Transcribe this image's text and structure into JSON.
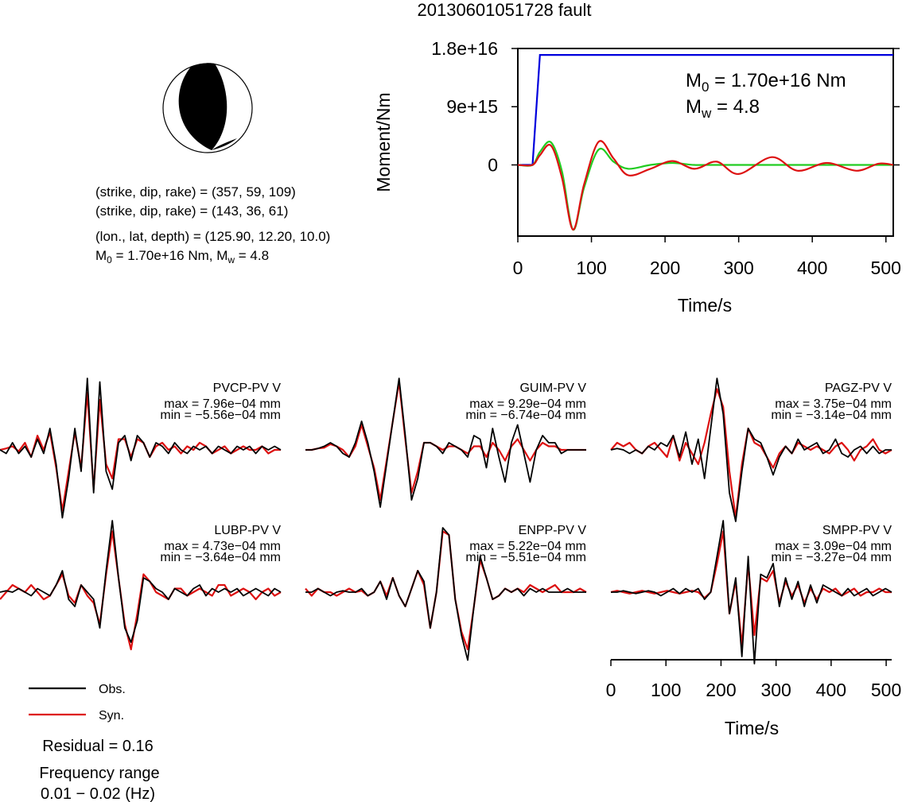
{
  "title": "20130601051728 fault",
  "beachball": {
    "planes": [
      {
        "prefix": "(strike, dip, rake) = ",
        "value": "(357, 59, 109)"
      },
      {
        "prefix": "(strike, dip, rake) = ",
        "value": "(143, 36, 61)"
      }
    ],
    "location": "(lon., lat, depth) = (125.90, 12.20, 10.0)",
    "moment_prefix": "M",
    "moment_sub": "0",
    "moment_text": " = 1.70e+16 Nm, M",
    "moment_sub_w": "w",
    "moment_mw": " = 4.8"
  },
  "chart_data": [
    {
      "type": "line",
      "panel": "moment",
      "ylabel": "Moment/Nm",
      "xlabel": "Time/s",
      "xlim": [
        0,
        510
      ],
      "ylim": [
        -1.1e+16,
        1.8e+16
      ],
      "xticks": [
        "0",
        "100",
        "200",
        "300",
        "400",
        "500"
      ],
      "yticks": [
        "0",
        "9e+15",
        "1.8e+16"
      ],
      "annotation": {
        "m0_label": "M",
        "m0_sub": "0",
        "m0_value": " = 1.70e+16 Nm",
        "mw_label": "M",
        "mw_sub": "w",
        "mw_value": " = 4.8"
      },
      "series": [
        {
          "color": "#0000dd",
          "x": [
            0,
            20,
            30,
            510
          ],
          "y": [
            0,
            0,
            1.7e+16,
            1.7e+16
          ]
        },
        {
          "color": "#22cc22",
          "x": [
            0,
            20,
            30,
            45,
            60,
            75,
            90,
            110,
            130,
            150,
            180,
            210,
            240,
            270,
            510
          ],
          "y": [
            0,
            0,
            2000000000000000.0,
            3500000000000000.0,
            -1000000000000000.0,
            -1e+16,
            -3500000000000000.0,
            2400000000000000.0,
            500000000000000.0,
            -600000000000000.0,
            0,
            300000000000000.0,
            0,
            0,
            0
          ]
        },
        {
          "color": "#dd1111",
          "x": [
            0,
            20,
            30,
            45,
            60,
            75,
            90,
            110,
            130,
            150,
            180,
            210,
            240,
            270,
            300,
            345,
            380,
            420,
            460,
            490,
            510
          ],
          "y": [
            0,
            0,
            1500000000000000.0,
            3000000000000000.0,
            -2000000000000000.0,
            -1e+16,
            -3000000000000000.0,
            3600000000000000.0,
            1000000000000000.0,
            -1600000000000000.0,
            -600000000000000.0,
            600000000000000.0,
            -600000000000000.0,
            500000000000000.0,
            -1400000000000000.0,
            1200000000000000.0,
            -900000000000000.0,
            300000000000000.0,
            -900000000000000.0,
            200000000000000.0,
            0
          ]
        }
      ]
    },
    {
      "type": "line",
      "panel": "waveforms",
      "xlabel": "Time/s",
      "xlim": [
        0,
        510
      ],
      "xticks": [
        "0",
        "100",
        "200",
        "300",
        "400",
        "500"
      ],
      "stations": [
        {
          "name": "PVCP-PV V",
          "max": "max = 7.96e−04 mm",
          "min": "min = −5.56e−04 mm",
          "obs": [
            0,
            -0.05,
            0.1,
            -0.05,
            0.05,
            -0.1,
            0.15,
            -0.05,
            0.3,
            -0.2,
            -0.95,
            -0.4,
            0.3,
            -0.3,
            1.0,
            -0.6,
            0.95,
            -0.3,
            -0.55,
            0.1,
            0.2,
            -0.15,
            0.2,
            0.1,
            -0.1,
            0.1,
            0.05,
            -0.05,
            0.1,
            0,
            -0.05,
            0.05,
            0,
            0.05,
            -0.05,
            0.05,
            0,
            -0.05,
            0.05,
            0,
            0.05,
            -0.05,
            0.05,
            0,
            0.05,
            0
          ],
          "syn": [
            0,
            0.02,
            0.05,
            -0.02,
            0.1,
            -0.1,
            0.2,
            0,
            0.25,
            -0.25,
            -0.85,
            -0.3,
            0.25,
            -0.25,
            0.8,
            -0.55,
            0.7,
            -0.2,
            -0.4,
            0.15,
            0.15,
            -0.1,
            0.15,
            0.1,
            -0.1,
            0.05,
            0.1,
            0,
            0.05,
            -0.05,
            0.05,
            0,
            0.1,
            0.05,
            -0.05,
            0,
            0.05,
            -0.05,
            0,
            0.05,
            0,
            0,
            0.05,
            -0.05,
            0,
            0
          ]
        },
        {
          "name": "GUIM-PV V",
          "max": "max = 9.29e−04 mm",
          "min": "min = −6.74e−04 mm",
          "obs": [
            0,
            0,
            0.02,
            0.05,
            0.1,
            0.05,
            -0.05,
            -0.1,
            0.1,
            0.4,
            0.1,
            -0.3,
            -0.8,
            -0.2,
            0.4,
            1.0,
            0.2,
            -0.7,
            -0.4,
            0.1,
            0.1,
            0.05,
            -0.05,
            0.1,
            0.05,
            0,
            -0.1,
            0.2,
            0.15,
            -0.25,
            0.3,
            -0.1,
            -0.45,
            0.1,
            0.35,
            -0.05,
            -0.45,
            0,
            0.2,
            0.1,
            0.1,
            -0.05,
            0,
            0,
            0,
            0
          ],
          "syn": [
            0,
            0,
            0.02,
            0.03,
            0.08,
            0.05,
            0,
            -0.1,
            0.05,
            0.35,
            0.05,
            -0.25,
            -0.7,
            -0.15,
            0.4,
            0.95,
            0.15,
            -0.6,
            -0.3,
            0.1,
            0.1,
            0.05,
            0,
            0.05,
            0.05,
            0,
            -0.05,
            0.05,
            0.05,
            -0.1,
            0.1,
            0,
            -0.15,
            0.05,
            0.15,
            0,
            -0.15,
            0,
            0.1,
            0.05,
            0.05,
            0,
            0,
            0,
            0,
            0
          ]
        },
        {
          "name": "PAGZ-PV V",
          "max": "max = 3.75e−04 mm",
          "min": "min = −3.14e−04 mm",
          "obs": [
            0,
            0.02,
            0,
            -0.05,
            0,
            -0.05,
            0.05,
            0,
            0.1,
            0.05,
            0.2,
            -0.1,
            0.25,
            -0.2,
            0.15,
            -0.4,
            0.3,
            1.0,
            0.5,
            -0.6,
            -1.0,
            -0.3,
            0.3,
            0.15,
            0.1,
            -0.1,
            -0.35,
            -0.1,
            0.05,
            -0.05,
            0.15,
            0,
            0.05,
            0.1,
            -0.05,
            0,
            0.15,
            -0.05,
            -0.1,
            0,
            0.05,
            -0.05,
            0.05,
            -0.05,
            0,
            0
          ],
          "syn": [
            0,
            0.1,
            0.05,
            0.1,
            0,
            -0.05,
            0.05,
            0.1,
            0,
            -0.1,
            0.2,
            -0.15,
            0.1,
            -0.05,
            -0.2,
            0.1,
            0.5,
            0.85,
            0.6,
            -0.3,
            -0.95,
            -0.2,
            0.3,
            0.1,
            0.05,
            -0.1,
            -0.25,
            -0.05,
            0.05,
            -0.05,
            0.1,
            0.05,
            0,
            0.05,
            0,
            -0.05,
            0.05,
            0.1,
            0,
            -0.15,
            0,
            0.05,
            0.15,
            0,
            -0.05,
            0
          ]
        },
        {
          "name": "LUBP-PV V",
          "max": "max = 4.73e−04 mm",
          "min": "min = −3.64e−04 mm",
          "obs": [
            0,
            0.02,
            0,
            0.05,
            0,
            -0.05,
            0.05,
            0,
            -0.05,
            0.1,
            0.3,
            -0.1,
            -0.2,
            0.1,
            0,
            -0.1,
            -0.5,
            0.3,
            1.0,
            0.2,
            -0.5,
            -0.7,
            -0.4,
            0.2,
            0.15,
            0.05,
            0,
            -0.1,
            0.05,
            0,
            -0.05,
            0.05,
            0.1,
            -0.05,
            0.05,
            0,
            0.05,
            0,
            0.05,
            -0.05,
            0,
            0.05,
            0,
            -0.05,
            0.05,
            0
          ],
          "syn": [
            -0.1,
            0,
            0.1,
            0.05,
            0,
            0.1,
            0,
            -0.1,
            -0.05,
            0.1,
            0.25,
            -0.05,
            -0.15,
            0.1,
            -0.05,
            -0.15,
            -0.45,
            0.25,
            0.85,
            0.2,
            -0.45,
            -0.8,
            -0.3,
            0.25,
            0.15,
            0,
            -0.05,
            -0.1,
            0.05,
            0.05,
            -0.05,
            0,
            0.05,
            0,
            -0.05,
            0.1,
            0.1,
            -0.05,
            0,
            0.05,
            0,
            -0.1,
            0,
            0.05,
            -0.05,
            0
          ]
        },
        {
          "name": "ENPP-PV V",
          "max": "max = 5.22e−04 mm",
          "min": "min = −5.51e−04 mm",
          "obs": [
            0,
            0,
            0.05,
            0,
            -0.05,
            0,
            0.02,
            0,
            0,
            0.05,
            -0.05,
            0,
            0.15,
            -0.1,
            0.2,
            -0.05,
            -0.2,
            0.05,
            0.3,
            0.15,
            -0.5,
            0,
            0.9,
            0.8,
            -0.1,
            -0.6,
            -0.95,
            -0.2,
            0.5,
            0.2,
            -0.1,
            -0.05,
            0.05,
            0,
            0.05,
            -0.05,
            0.05,
            0,
            0.05,
            0,
            0,
            0,
            0.05,
            0,
            0,
            0
          ],
          "syn": [
            0.05,
            -0.05,
            0.05,
            0,
            0,
            -0.05,
            0,
            0.05,
            0,
            0.02,
            -0.05,
            0,
            0.15,
            -0.05,
            0.2,
            -0.05,
            -0.2,
            0.05,
            0.3,
            0.1,
            -0.5,
            0,
            0.85,
            0.8,
            -0.1,
            -0.55,
            -0.8,
            -0.2,
            0.45,
            0.2,
            -0.1,
            -0.05,
            0.05,
            0,
            0.05,
            0,
            0.1,
            0.05,
            0,
            0.05,
            0.1,
            0,
            0,
            0,
            0.05,
            0
          ]
        },
        {
          "name": "SMPP-PV V",
          "max": "max = 3.09e−04 mm",
          "min": "min = −3.27e−04 mm",
          "obs": [
            0,
            0,
            0.02,
            0,
            -0.02,
            0,
            0.02,
            0,
            -0.05,
            0,
            0.05,
            -0.02,
            0.05,
            0,
            0.05,
            -0.1,
            0,
            0.5,
            1.0,
            -0.3,
            0.2,
            -0.9,
            0.5,
            -1.0,
            0.25,
            0.2,
            0.4,
            -0.2,
            0.2,
            -0.1,
            0.15,
            -0.2,
            0.1,
            -0.15,
            0.1,
            0.05,
            0,
            -0.05,
            0.05,
            -0.05,
            0,
            0.05,
            -0.05,
            0,
            0.05,
            0
          ],
          "syn": [
            0,
            0.02,
            0,
            -0.02,
            0,
            0.02,
            0,
            -0.02,
            0,
            0.02,
            0,
            -0.02,
            0,
            0.02,
            0,
            -0.08,
            0,
            0.4,
            0.85,
            -0.3,
            0.15,
            -0.75,
            0.4,
            -0.6,
            0.2,
            0.15,
            0.3,
            -0.15,
            0.15,
            -0.05,
            0.1,
            -0.15,
            0.05,
            -0.1,
            0.05,
            0,
            0.05,
            -0.05,
            0,
            0.05,
            -0.05,
            0,
            0,
            0.05,
            0,
            0
          ]
        }
      ]
    }
  ],
  "legend": {
    "obs": "Obs.",
    "syn": "Syn.",
    "obs_color": "#000000",
    "syn_color": "#dd1111"
  },
  "residual": "Residual = 0.16",
  "freq_title": "Frequency range",
  "freq_range": "0.01 − 0.02 (Hz)"
}
